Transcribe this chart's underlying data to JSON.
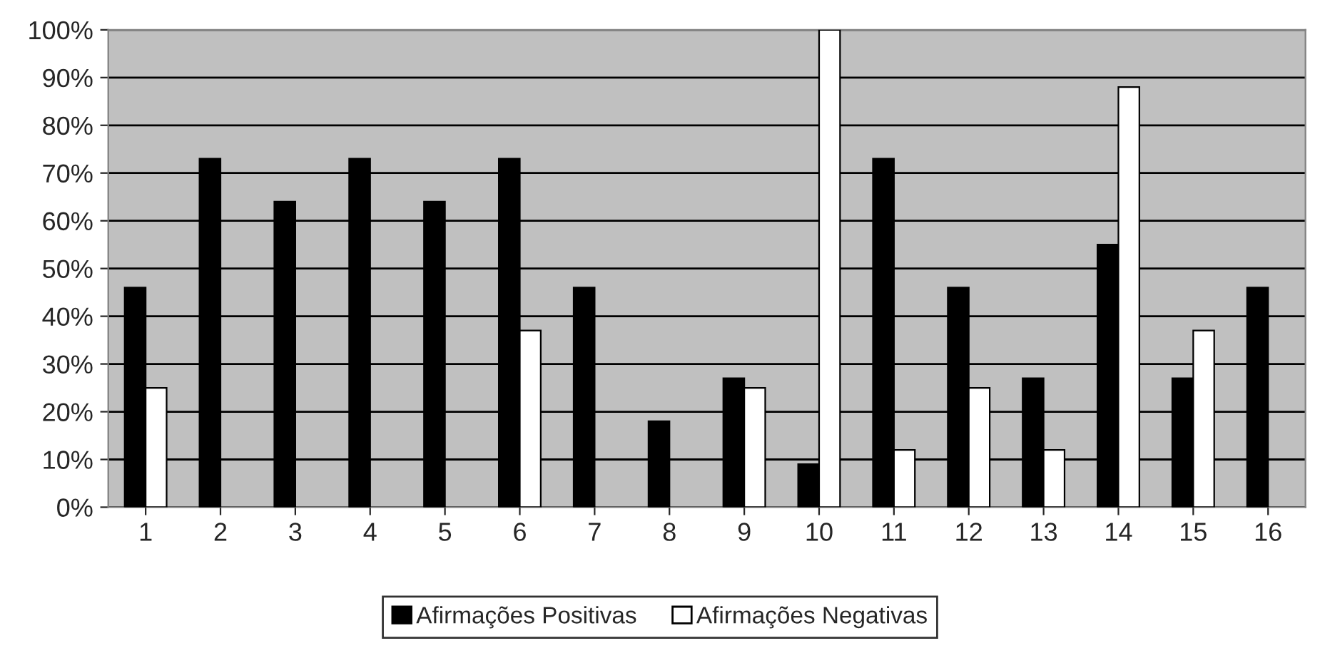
{
  "chart_data": {
    "type": "bar",
    "categories": [
      "1",
      "2",
      "3",
      "4",
      "5",
      "6",
      "7",
      "8",
      "9",
      "10",
      "11",
      "12",
      "13",
      "14",
      "15",
      "16"
    ],
    "series": [
      {
        "name": "Afirmações Positivas",
        "color": "#000000",
        "values": [
          46,
          73,
          64,
          73,
          64,
          73,
          46,
          18,
          27,
          9,
          73,
          46,
          27,
          55,
          27,
          46
        ]
      },
      {
        "name": "Afirmações Negativas",
        "color": "#ffffff",
        "values": [
          25,
          null,
          null,
          null,
          null,
          37,
          null,
          null,
          25,
          100,
          12,
          25,
          12,
          88,
          37,
          null
        ]
      }
    ],
    "ylim": [
      0,
      100
    ],
    "yticks": [
      {
        "value": 0,
        "label": "0%"
      },
      {
        "value": 10,
        "label": "10%"
      },
      {
        "value": 20,
        "label": "20%"
      },
      {
        "value": 30,
        "label": "30%"
      },
      {
        "value": 40,
        "label": "40%"
      },
      {
        "value": 50,
        "label": "50%"
      },
      {
        "value": 60,
        "label": "60%"
      },
      {
        "value": 70,
        "label": "70%"
      },
      {
        "value": 80,
        "label": "80%"
      },
      {
        "value": 90,
        "label": "90%"
      },
      {
        "value": 100,
        "label": "100%"
      }
    ],
    "grid": "y",
    "legend": "bottom"
  }
}
